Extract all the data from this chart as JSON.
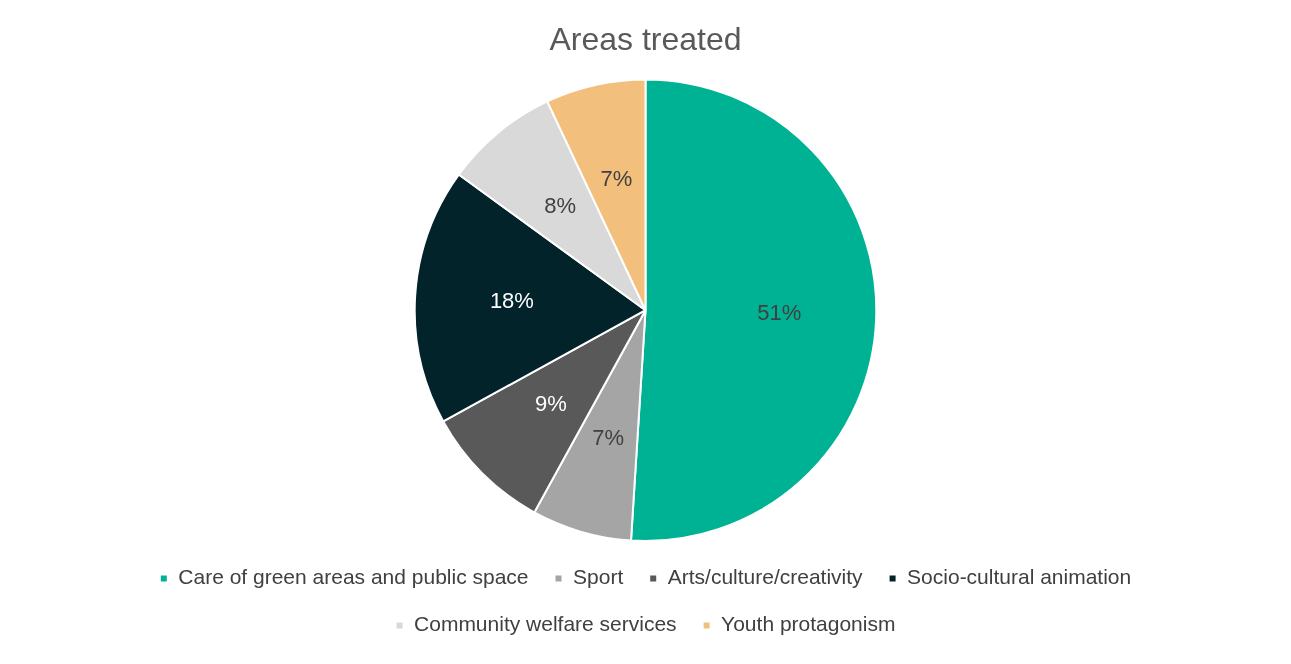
{
  "chart_data": {
    "type": "pie",
    "title": "Areas treated",
    "categories": [
      "Care of green areas and public space",
      "Sport",
      "Arts/culture/creativity",
      "Socio-cultural animation",
      "Community welfare services",
      "Youth protagonism"
    ],
    "values": [
      51,
      7,
      9,
      18,
      8,
      7
    ],
    "value_labels": [
      "51%",
      "7%",
      "9%",
      "18%",
      "8%",
      "7%"
    ],
    "colors": [
      "#00b294",
      "#a5a5a5",
      "#595959",
      "#03232b",
      "#d9d9d9",
      "#f2c07c"
    ],
    "legend": "bottom"
  }
}
